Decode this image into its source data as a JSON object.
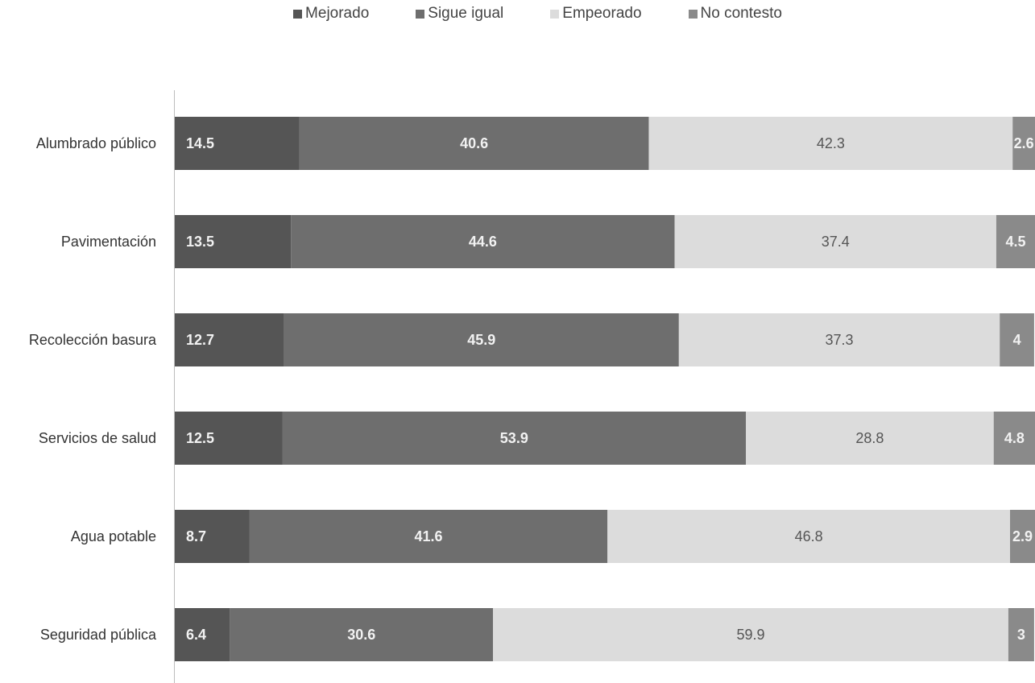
{
  "chart_data": {
    "type": "bar",
    "orientation": "horizontal",
    "stacked": true,
    "title": "",
    "xlabel": "",
    "ylabel": "",
    "legend_position": "top",
    "grid": false,
    "categories": [
      "Alumbrado público",
      "Pavimentación",
      "Recolección basura",
      "Servicios de salud",
      "Agua potable",
      "Seguridad pública"
    ],
    "series": [
      {
        "name": "Mejorado",
        "color": "#555555",
        "values": [
          14.5,
          13.5,
          12.7,
          12.5,
          8.7,
          6.4
        ]
      },
      {
        "name": "Sigue igual",
        "color": "#6e6e6e",
        "values": [
          40.6,
          44.6,
          45.9,
          53.9,
          41.6,
          30.6
        ]
      },
      {
        "name": "Empeorado",
        "color": "#dcdcdc",
        "values": [
          42.3,
          37.4,
          37.3,
          28.8,
          46.8,
          59.9
        ]
      },
      {
        "name": "No contesto",
        "color": "#8a8a8a",
        "values": [
          2.6,
          4.5,
          4,
          4.8,
          2.9,
          3
        ]
      }
    ],
    "data_labels": [
      [
        "14.5",
        "40.6",
        "42.3",
        "2.6"
      ],
      [
        "13.5",
        "44.6",
        "37.4",
        "4.5"
      ],
      [
        "12.7",
        "45.9",
        "37.3",
        "4"
      ],
      [
        "12.5",
        "53.9",
        "28.8",
        "4.8"
      ],
      [
        "8.7",
        "41.6",
        "46.8",
        "2.9"
      ],
      [
        "6.4",
        "30.6",
        "59.9",
        "3"
      ]
    ],
    "xlim": [
      0,
      100
    ]
  }
}
